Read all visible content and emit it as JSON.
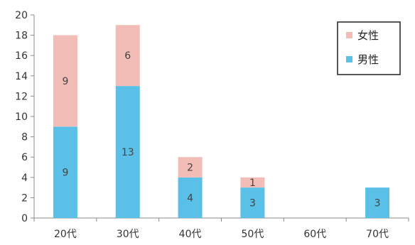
{
  "chart_data": {
    "type": "bar",
    "stacked": true,
    "categories": [
      "20代",
      "30代",
      "40代",
      "50代",
      "60代",
      "70代"
    ],
    "series": [
      {
        "name": "男性",
        "values": [
          9,
          13,
          4,
          3,
          0,
          3
        ],
        "color": "#5BC0E8"
      },
      {
        "name": "女性",
        "values": [
          9,
          6,
          2,
          1,
          0,
          0
        ],
        "color": "#F2BDB6"
      }
    ],
    "ylim": [
      0,
      20
    ],
    "yticks": [
      0,
      2,
      4,
      6,
      8,
      10,
      12,
      14,
      16,
      18,
      20
    ],
    "grid": false,
    "legend_position": "top-right",
    "legend_order": [
      "女性",
      "男性"
    ],
    "data_labels": true
  }
}
